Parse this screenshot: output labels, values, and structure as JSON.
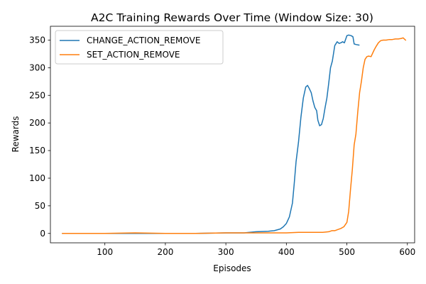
{
  "chart_data": {
    "type": "line",
    "title": "A2C Training Rewards Over Time (Window Size: 30)",
    "xlabel": "Episodes",
    "ylabel": "Rewards",
    "xlim": [
      10,
      612
    ],
    "ylim": [
      -17,
      375
    ],
    "xticks": [
      100,
      200,
      300,
      400,
      500,
      600
    ],
    "yticks": [
      0,
      50,
      100,
      150,
      200,
      250,
      300,
      350
    ],
    "grid": false,
    "legend_position": "top-left",
    "series": [
      {
        "name": "CHANGE_ACTION_REMOVE",
        "color": "#1f77b4",
        "x": [
          30,
          50,
          100,
          150,
          200,
          250,
          300,
          330,
          350,
          370,
          380,
          390,
          395,
          400,
          405,
          410,
          413,
          416,
          420,
          424,
          428,
          432,
          435,
          438,
          441,
          444,
          447,
          450,
          452,
          455,
          458,
          461,
          464,
          467,
          470,
          473,
          476,
          480,
          484,
          487,
          490,
          493,
          496,
          500,
          503,
          507,
          510,
          512,
          515,
          520
        ],
        "y": [
          0,
          0,
          0,
          0,
          0,
          0,
          1,
          1,
          3,
          4,
          5,
          8,
          12,
          18,
          30,
          55,
          90,
          130,
          165,
          210,
          245,
          265,
          268,
          262,
          255,
          240,
          228,
          222,
          205,
          195,
          197,
          208,
          228,
          245,
          272,
          300,
          312,
          340,
          347,
          344,
          345,
          347,
          345,
          358,
          359,
          358,
          356,
          343,
          342,
          341
        ]
      },
      {
        "name": "SET_ACTION_REMOVE",
        "color": "#ff7f0e",
        "x": [
          30,
          50,
          100,
          150,
          200,
          250,
          300,
          350,
          400,
          420,
          440,
          450,
          460,
          470,
          475,
          480,
          485,
          490,
          495,
          500,
          503,
          506,
          509,
          512,
          515,
          518,
          521,
          524,
          527,
          530,
          533,
          536,
          540,
          545,
          548,
          552,
          556,
          560,
          565,
          570,
          575,
          580,
          585,
          590,
          593,
          597
        ],
        "y": [
          0,
          0,
          0,
          1,
          0,
          0,
          1,
          1,
          1,
          2,
          2,
          2,
          2,
          3,
          5,
          5,
          7,
          9,
          12,
          20,
          40,
          80,
          115,
          160,
          180,
          220,
          255,
          275,
          300,
          315,
          320,
          321,
          320,
          332,
          338,
          345,
          349,
          350,
          350,
          351,
          351,
          352,
          352,
          353,
          354,
          350
        ]
      }
    ]
  }
}
